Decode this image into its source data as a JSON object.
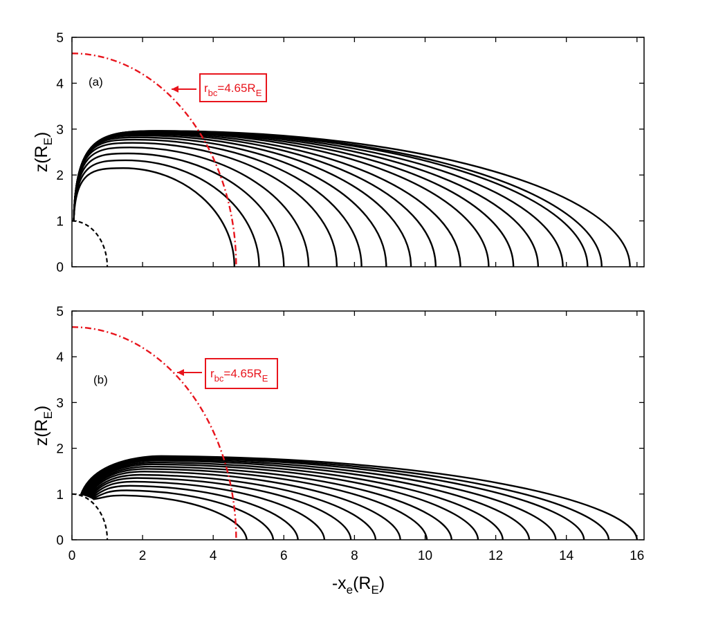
{
  "chart_data": [
    {
      "type": "line",
      "panel_label": "(a)",
      "xlabel": "",
      "ylabel": "z(R_E)",
      "ylabel_parts": {
        "main": "z(R",
        "sub": "E",
        "close": ")"
      },
      "xlim": [
        0,
        16.2
      ],
      "ylim": [
        0,
        5
      ],
      "x_ticks": [],
      "y_ticks": [
        "0",
        "1",
        "2",
        "3",
        "4",
        "5"
      ],
      "grid": false,
      "boundary_circle": {
        "radius": 4.65,
        "style": "dash-dot",
        "color": "#e8141c"
      },
      "inner_circle": {
        "radius": 1.0,
        "style": "dashed",
        "color": "#000000"
      },
      "field_line_footpoints_x": [
        4.6,
        5.3,
        6.0,
        6.7,
        7.5,
        8.2,
        8.9,
        9.6,
        10.3,
        11.0,
        11.8,
        12.5,
        13.2,
        13.9,
        14.6,
        15.0,
        15.8
      ],
      "field_line_apex_z": [
        2.15,
        2.32,
        2.47,
        2.6,
        2.7,
        2.77,
        2.82,
        2.86,
        2.89,
        2.91,
        2.93,
        2.94,
        2.95,
        2.955,
        2.96,
        2.96,
        2.96
      ],
      "field_line_start_x": 0.05,
      "field_line_start_z": 1.0,
      "annotation": {
        "text_main": "r",
        "text_sub": "bc",
        "text_rest": "=4.65R",
        "text_sub2": "E",
        "color": "#e8141c"
      }
    },
    {
      "type": "line",
      "panel_label": "(b)",
      "xlabel": "-x_e(R_E)",
      "xlabel_parts": {
        "main": "-x",
        "sub": "e",
        "mid": "(R",
        "sub2": "E",
        "close": ")"
      },
      "ylabel": "z(R_E)",
      "ylabel_parts": {
        "main": "z(R",
        "sub": "E",
        "close": ")"
      },
      "xlim": [
        0,
        16.2
      ],
      "ylim": [
        0,
        5
      ],
      "x_ticks": [
        "0",
        "2",
        "4",
        "6",
        "8",
        "10",
        "12",
        "14",
        "16"
      ],
      "y_ticks": [
        "0",
        "1",
        "2",
        "3",
        "4",
        "5"
      ],
      "grid": false,
      "boundary_circle": {
        "radius": 4.65,
        "style": "dash-dot",
        "color": "#e8141c"
      },
      "inner_circle": {
        "radius": 1.0,
        "style": "dashed",
        "color": "#000000"
      },
      "field_line_footpoints_x": [
        4.95,
        5.7,
        6.4,
        7.15,
        7.9,
        8.6,
        9.3,
        10.05,
        10.75,
        11.5,
        12.2,
        12.95,
        13.7,
        14.5,
        15.2,
        16.0
      ],
      "field_line_apex_z": [
        0.97,
        1.08,
        1.18,
        1.27,
        1.35,
        1.42,
        1.49,
        1.55,
        1.6,
        1.65,
        1.69,
        1.73,
        1.76,
        1.79,
        1.81,
        1.83
      ],
      "field_line_apex_x": [
        1.45,
        1.55,
        1.65,
        1.75,
        1.85,
        1.95,
        2.05,
        2.12,
        2.2,
        2.27,
        2.33,
        2.38,
        2.42,
        2.46,
        2.5,
        2.53
      ],
      "field_line_start_x_range": [
        0.25,
        0.6
      ],
      "annotation": {
        "text_main": "r",
        "text_sub": "bc",
        "text_rest": "=4.65R",
        "text_sub2": "E",
        "color": "#e8141c"
      }
    }
  ]
}
